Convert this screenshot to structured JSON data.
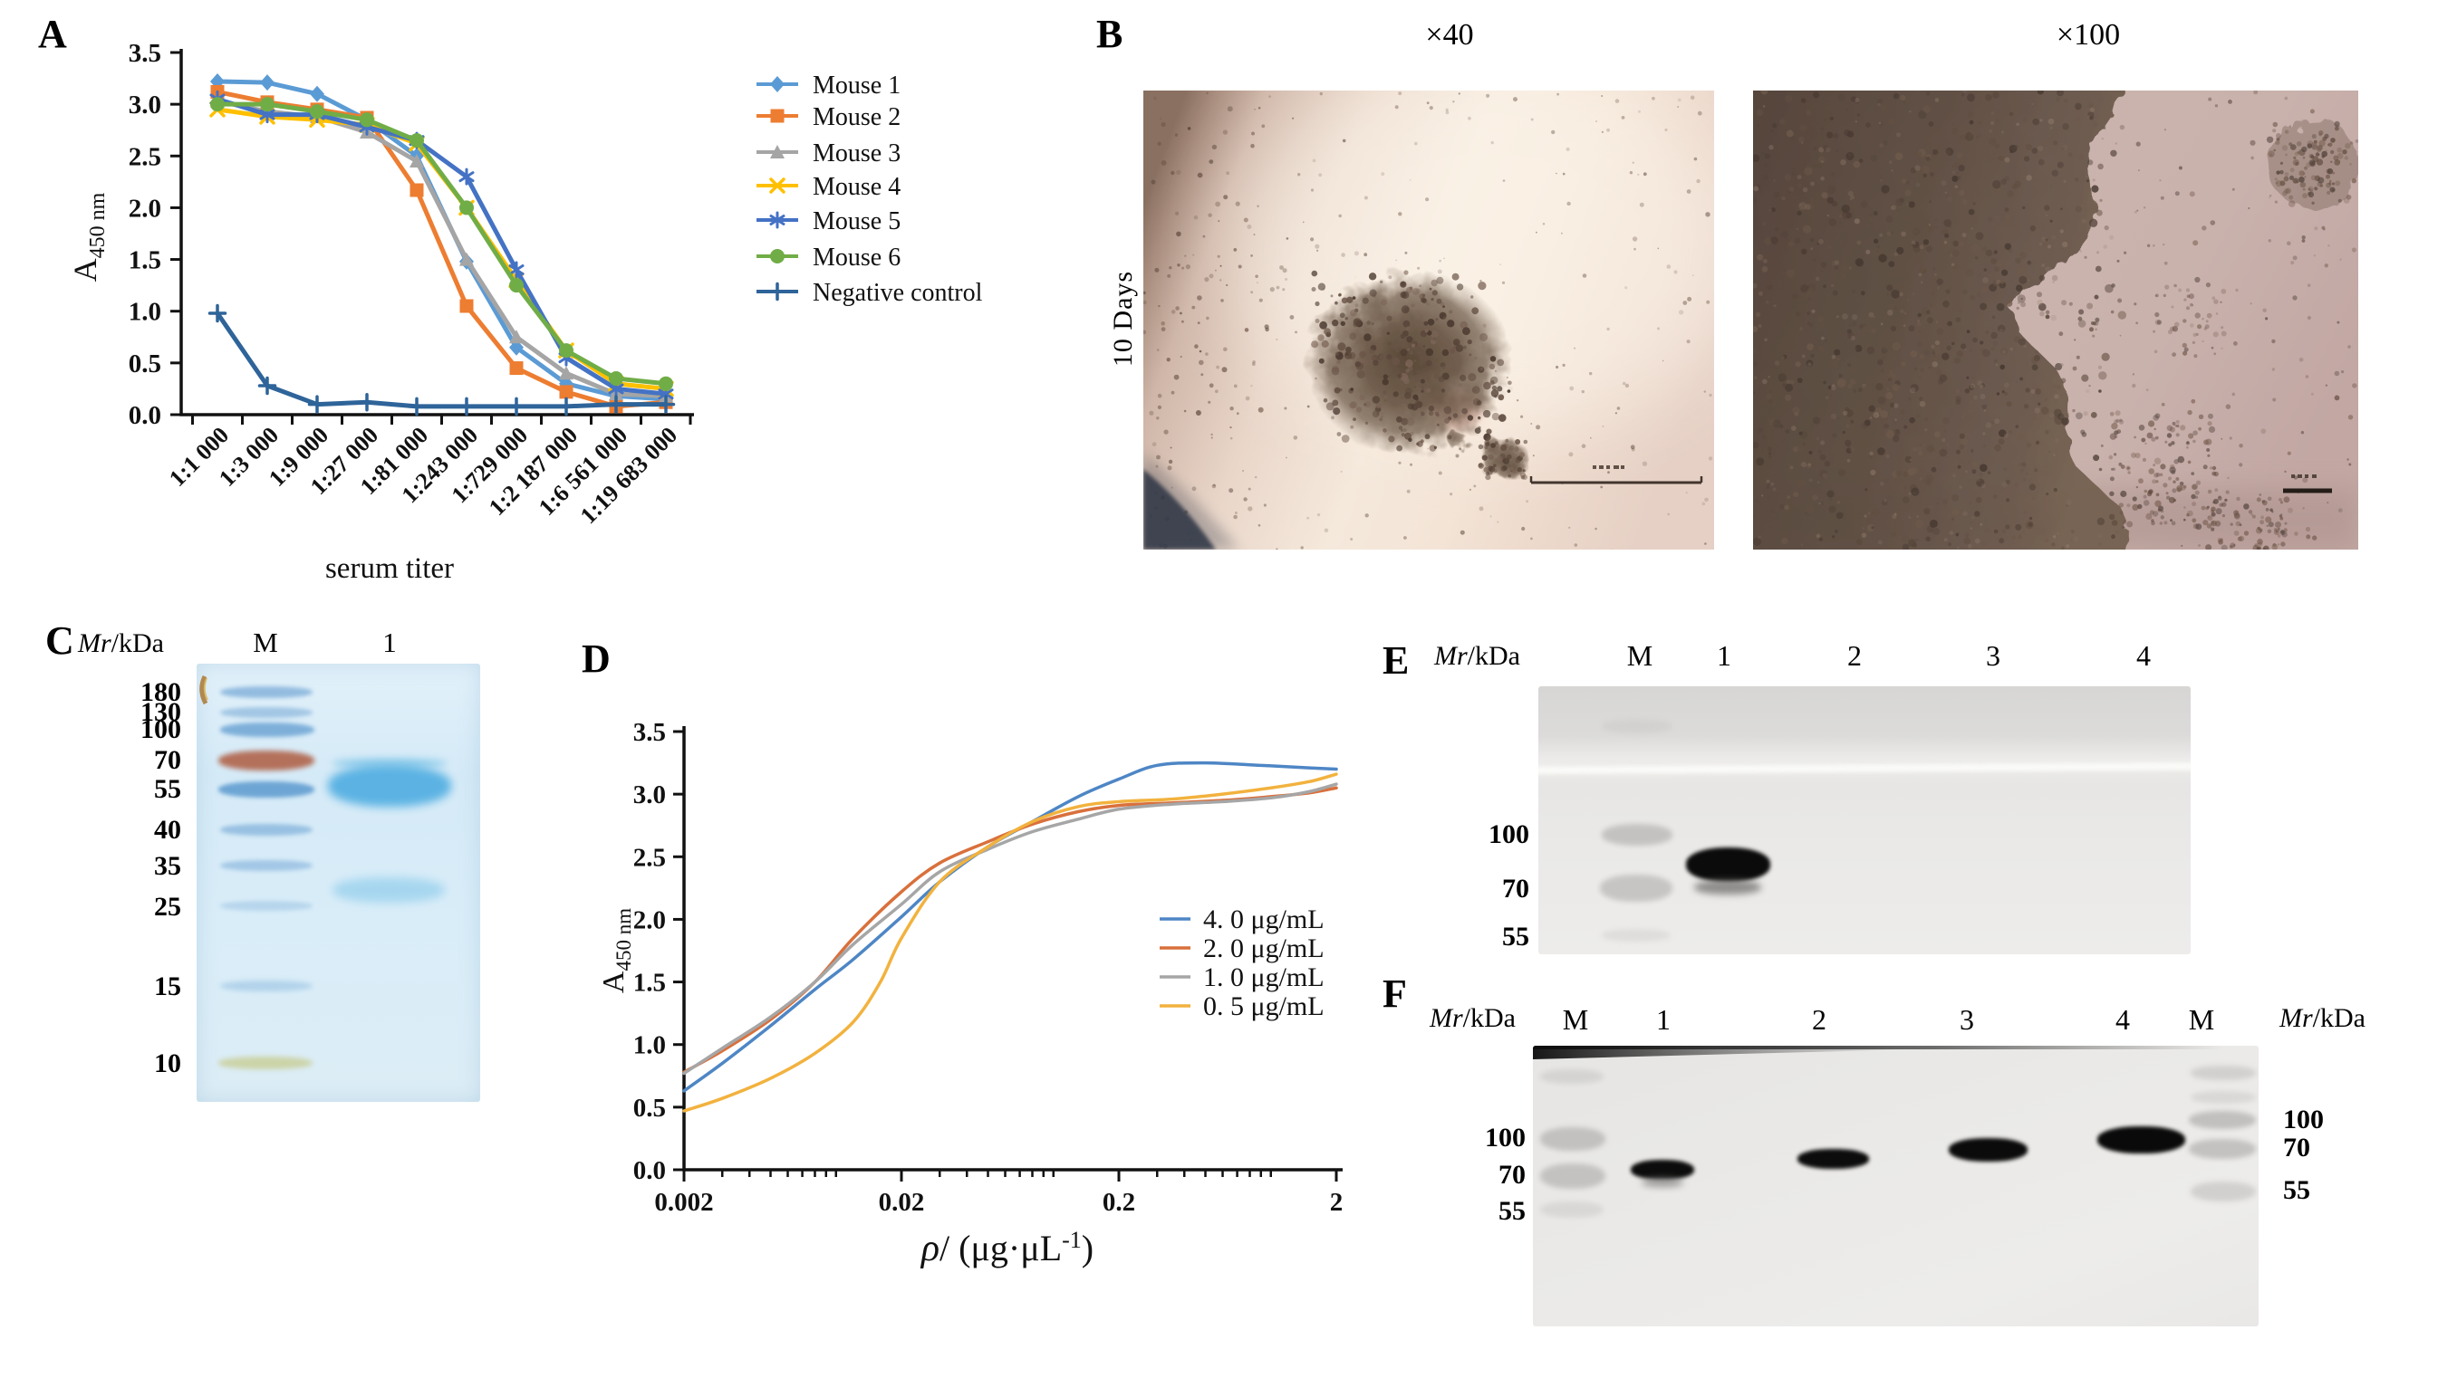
{
  "panels": {
    "a": "A",
    "b": "B",
    "c": "C",
    "d": "D",
    "e": "E",
    "f": "F"
  },
  "chart_data": [
    {
      "panel": "A",
      "type": "line",
      "title": "",
      "xlabel": "serum titer",
      "ylabel": "A450 nm",
      "ylabel_parts": {
        "main": "A",
        "sub": "450 nm"
      },
      "ylim": [
        0,
        3.5
      ],
      "ytick_step": 0.5,
      "yticks": [
        "0.0",
        "0.5",
        "1.0",
        "1.5",
        "2.0",
        "2.5",
        "3.0",
        "3.5"
      ],
      "grid": false,
      "legend_position": "right",
      "categories": [
        "1:1 000",
        "1:3 000",
        "1:9 000",
        "1:27 000",
        "1:81 000",
        "1:243 000",
        "1:729 000",
        "1:2 187 000",
        "1:6 561 000",
        "1:19 683 000"
      ],
      "series": [
        {
          "name": "Mouse 1",
          "color": "#5B9BD5",
          "marker": "diamond",
          "values": [
            3.22,
            3.21,
            3.1,
            2.85,
            2.5,
            1.48,
            0.65,
            0.3,
            0.18,
            0.15
          ]
        },
        {
          "name": "Mouse 2",
          "color": "#ED7D31",
          "marker": "square",
          "values": [
            3.12,
            3.02,
            2.95,
            2.87,
            2.17,
            1.05,
            0.45,
            0.22,
            0.08,
            0.12
          ]
        },
        {
          "name": "Mouse 3",
          "color": "#A5A5A5",
          "marker": "triangle",
          "values": [
            3.03,
            2.93,
            2.88,
            2.73,
            2.45,
            1.5,
            0.75,
            0.4,
            0.2,
            0.18
          ]
        },
        {
          "name": "Mouse 4",
          "color": "#FFC000",
          "marker": "x",
          "values": [
            2.95,
            2.88,
            2.85,
            2.8,
            2.62,
            2.0,
            1.3,
            0.62,
            0.3,
            0.25
          ]
        },
        {
          "name": "Mouse 5",
          "color": "#4472C4",
          "marker": "asterisk",
          "values": [
            3.05,
            2.9,
            2.9,
            2.78,
            2.65,
            2.3,
            1.4,
            0.55,
            0.25,
            0.2
          ]
        },
        {
          "name": "Mouse 6",
          "color": "#70AD47",
          "marker": "circle",
          "values": [
            3.0,
            3.0,
            2.93,
            2.85,
            2.65,
            2.0,
            1.25,
            0.62,
            0.35,
            0.3
          ]
        },
        {
          "name": "Negative control",
          "color": "#2E6499",
          "marker": "plus",
          "values": [
            0.98,
            0.28,
            0.1,
            0.12,
            0.08,
            0.08,
            0.08,
            0.08,
            0.1,
            0.1
          ]
        }
      ]
    },
    {
      "panel": "D",
      "type": "line",
      "title": "",
      "xlabel": "ρ/ (μg·μL-1)",
      "xlabel_parts": {
        "rho": "ρ",
        "mid": "/ (μg·μL",
        "sup": "-1",
        "post": ")"
      },
      "ylabel": "A450 nm",
      "ylabel_parts": {
        "main": "A",
        "sub": "450 nm"
      },
      "xscale": "log",
      "xlim": [
        0.002,
        2
      ],
      "xticks": [
        "0.002",
        "0.02",
        "0.2",
        "2"
      ],
      "ylim": [
        0,
        3.5
      ],
      "yticks": [
        "0.0",
        "0.5",
        "1.0",
        "1.5",
        "2.0",
        "2.5",
        "3.0",
        "3.5"
      ],
      "grid": false,
      "legend_position": "inside-right",
      "series": [
        {
          "name": "4. 0 μg/mL",
          "color": "#4E86C5",
          "points": [
            [
              0.002,
              0.63
            ],
            [
              0.003,
              0.85
            ],
            [
              0.005,
              1.15
            ],
            [
              0.008,
              1.44
            ],
            [
              0.012,
              1.68
            ],
            [
              0.02,
              2.02
            ],
            [
              0.03,
              2.3
            ],
            [
              0.05,
              2.58
            ],
            [
              0.08,
              2.78
            ],
            [
              0.13,
              2.98
            ],
            [
              0.2,
              3.12
            ],
            [
              0.3,
              3.23
            ],
            [
              0.5,
              3.25
            ],
            [
              0.9,
              3.23
            ],
            [
              1.5,
              3.21
            ],
            [
              2,
              3.2
            ]
          ]
        },
        {
          "name": "2. 0 μg/mL",
          "color": "#D9703C",
          "points": [
            [
              0.002,
              0.78
            ],
            [
              0.003,
              0.95
            ],
            [
              0.005,
              1.2
            ],
            [
              0.008,
              1.5
            ],
            [
              0.012,
              1.85
            ],
            [
              0.02,
              2.22
            ],
            [
              0.03,
              2.45
            ],
            [
              0.05,
              2.62
            ],
            [
              0.08,
              2.76
            ],
            [
              0.13,
              2.86
            ],
            [
              0.2,
              2.91
            ],
            [
              0.35,
              2.93
            ],
            [
              0.6,
              2.95
            ],
            [
              1,
              2.98
            ],
            [
              1.5,
              3.01
            ],
            [
              2,
              3.05
            ]
          ]
        },
        {
          "name": "1. 0 μg/mL",
          "color": "#A6A6A6",
          "points": [
            [
              0.002,
              0.77
            ],
            [
              0.003,
              0.97
            ],
            [
              0.005,
              1.22
            ],
            [
              0.008,
              1.5
            ],
            [
              0.012,
              1.8
            ],
            [
              0.02,
              2.12
            ],
            [
              0.03,
              2.38
            ],
            [
              0.05,
              2.56
            ],
            [
              0.08,
              2.7
            ],
            [
              0.13,
              2.8
            ],
            [
              0.2,
              2.88
            ],
            [
              0.35,
              2.92
            ],
            [
              0.6,
              2.94
            ],
            [
              1,
              2.97
            ],
            [
              1.5,
              3.02
            ],
            [
              2,
              3.08
            ]
          ]
        },
        {
          "name": "0. 5 μg/mL",
          "color": "#F2B23E",
          "points": [
            [
              0.002,
              0.47
            ],
            [
              0.003,
              0.57
            ],
            [
              0.005,
              0.73
            ],
            [
              0.008,
              0.93
            ],
            [
              0.012,
              1.18
            ],
            [
              0.016,
              1.5
            ],
            [
              0.02,
              1.85
            ],
            [
              0.03,
              2.3
            ],
            [
              0.05,
              2.58
            ],
            [
              0.08,
              2.78
            ],
            [
              0.13,
              2.9
            ],
            [
              0.2,
              2.94
            ],
            [
              0.35,
              2.96
            ],
            [
              0.6,
              3.0
            ],
            [
              1,
              3.05
            ],
            [
              1.5,
              3.1
            ],
            [
              2,
              3.16
            ]
          ]
        }
      ]
    }
  ],
  "panel_b": {
    "mag_40": "×40",
    "mag_100": "×100",
    "row_label": "10 Days"
  },
  "panel_c": {
    "units": {
      "mr": "Mr",
      "rest": "/kDa"
    },
    "lane_labels": [
      "M",
      "1"
    ],
    "marker_labels": [
      "180",
      "130",
      "100",
      "70",
      "55",
      "40",
      "35",
      "25",
      "15",
      "10"
    ]
  },
  "panel_e": {
    "units": {
      "mr": "Mr",
      "rest": "/kDa"
    },
    "lane_labels": [
      "M",
      "1",
      "2",
      "3",
      "4"
    ],
    "marker_labels": [
      "100",
      "70",
      "55"
    ]
  },
  "panel_f": {
    "units_left": {
      "mr": "Mr",
      "rest": "/kDa"
    },
    "units_right": {
      "mr": "Mr",
      "rest": "/kDa"
    },
    "lane_labels": [
      "M",
      "1",
      "2",
      "3",
      "4",
      "M"
    ],
    "marker_labels_left": [
      "100",
      "70",
      "55"
    ],
    "marker_labels_right": [
      "100",
      "70",
      "55"
    ]
  }
}
